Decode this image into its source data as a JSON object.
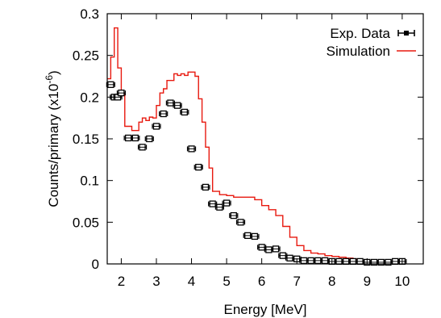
{
  "chart_data": {
    "type": "line",
    "xlabel": "Energy [MeV]",
    "ylabel": "Counts/primary (x10",
    "ylabel_exp": "-6",
    "ylabel_close": ")",
    "xlim": [
      1.6,
      10.6
    ],
    "ylim": [
      0,
      0.3
    ],
    "xticks": [
      2,
      3,
      4,
      5,
      6,
      7,
      8,
      9,
      10
    ],
    "xtick_labels": [
      "2",
      "3",
      "4",
      "5",
      "6",
      "7",
      "8",
      "9",
      "10"
    ],
    "yticks": [
      0,
      0.05,
      0.1,
      0.15,
      0.2,
      0.25,
      0.3
    ],
    "ytick_labels": [
      "0",
      "0.05",
      "0.1",
      "0.15",
      "0.2",
      "0.25",
      "0.3"
    ],
    "legend": {
      "position": "top-right"
    },
    "series": [
      {
        "name": "Exp. Data",
        "kind": "points",
        "color": "#000000",
        "x": [
          1.7,
          1.8,
          1.9,
          2.0,
          2.2,
          2.4,
          2.6,
          2.8,
          3.0,
          3.2,
          3.4,
          3.6,
          3.8,
          4.0,
          4.2,
          4.4,
          4.6,
          4.8,
          5.0,
          5.2,
          5.4,
          5.6,
          5.8,
          6.0,
          6.2,
          6.4,
          6.6,
          6.8,
          7.0,
          7.2,
          7.4,
          7.6,
          7.8,
          8.0,
          8.2,
          8.4,
          8.6,
          8.8,
          9.0,
          9.2,
          9.4,
          9.6,
          9.8,
          10.0
        ],
        "y": [
          0.215,
          0.2,
          0.2,
          0.205,
          0.151,
          0.151,
          0.14,
          0.15,
          0.165,
          0.18,
          0.193,
          0.19,
          0.182,
          0.138,
          0.116,
          0.092,
          0.072,
          0.068,
          0.073,
          0.058,
          0.05,
          0.034,
          0.033,
          0.02,
          0.017,
          0.018,
          0.01,
          0.007,
          0.006,
          0.004,
          0.004,
          0.004,
          0.004,
          0.003,
          0.003,
          0.003,
          0.003,
          0.003,
          0.002,
          0.002,
          0.002,
          0.002,
          0.003,
          0.003
        ]
      },
      {
        "name": "Simulation",
        "kind": "step",
        "color": "#e8190f",
        "bins": [
          1.6,
          1.7,
          1.8,
          1.9,
          2.0,
          2.1,
          2.2,
          2.3,
          2.4,
          2.5,
          2.6,
          2.7,
          2.8,
          2.9,
          3.0,
          3.1,
          3.2,
          3.3,
          3.4,
          3.5,
          3.6,
          3.7,
          3.8,
          3.9,
          4.0,
          4.1,
          4.2,
          4.3,
          4.4,
          4.5,
          4.6,
          4.8,
          5.0,
          5.2,
          5.4,
          5.6,
          5.8,
          6.0,
          6.2,
          6.4,
          6.6,
          6.8,
          7.0,
          7.2,
          7.4,
          7.6,
          7.8,
          8.0,
          8.2,
          8.4,
          8.6,
          8.8,
          9.0
        ],
        "values": [
          0.222,
          0.248,
          0.283,
          0.235,
          0.205,
          0.165,
          0.165,
          0.16,
          0.16,
          0.17,
          0.175,
          0.172,
          0.176,
          0.175,
          0.19,
          0.205,
          0.21,
          0.22,
          0.22,
          0.228,
          0.226,
          0.228,
          0.226,
          0.23,
          0.23,
          0.225,
          0.198,
          0.17,
          0.14,
          0.115,
          0.087,
          0.083,
          0.082,
          0.08,
          0.08,
          0.08,
          0.077,
          0.07,
          0.065,
          0.058,
          0.045,
          0.032,
          0.022,
          0.016,
          0.013,
          0.012,
          0.01,
          0.009,
          0.008,
          0.007,
          0.006,
          0.004
        ]
      }
    ]
  }
}
